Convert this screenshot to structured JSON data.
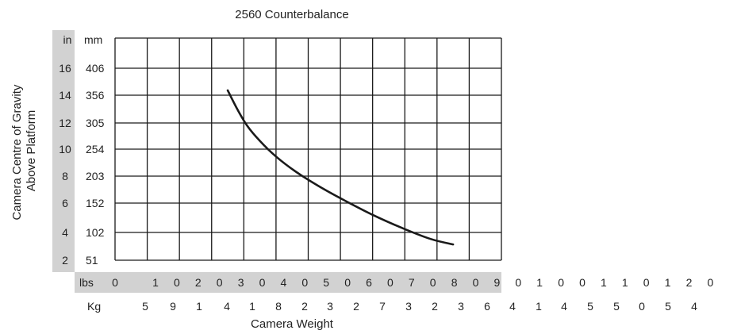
{
  "chart_data": {
    "type": "line",
    "title": "2560 Counterbalance",
    "xlabel": "Camera Weight",
    "ylabel_lines": [
      "Camera Centre of Gravity",
      "Above Platform"
    ],
    "y_axis": {
      "inch_unit": "in",
      "mm_unit": "mm",
      "inch_ticks": [
        "16",
        "14",
        "12",
        "10",
        "8",
        "6",
        "4",
        "2"
      ],
      "mm_ticks": [
        "406",
        "356",
        "305",
        "254",
        "203",
        "152",
        "102",
        "51"
      ]
    },
    "x_axis": {
      "lbs_unit": "lbs",
      "kg_unit": "Kg",
      "lbs_chars": [
        "0",
        "1",
        "0",
        "2",
        "0",
        "3",
        "0",
        "4",
        "0",
        "5",
        "0",
        "6",
        "0",
        "7",
        "0",
        "8",
        "0",
        "9",
        "0",
        "1",
        "0",
        "0",
        "1",
        "1",
        "0",
        "1",
        "2",
        "0"
      ],
      "kg_chars": [
        "5",
        "9",
        "1",
        "4",
        "1",
        "8",
        "2",
        "3",
        "2",
        "7",
        "3",
        "2",
        "3",
        "6",
        "4",
        "1",
        "4",
        "5",
        "5",
        "0",
        "5",
        "4"
      ],
      "lbs_grid_range": [
        0,
        120
      ],
      "lbs_step": 10
    },
    "grid": true,
    "series": [
      {
        "x_lbs": [
          35,
          38,
          41,
          45,
          50,
          56,
          63,
          71,
          80,
          89,
          98,
          105
        ],
        "y_mm": [
          365,
          330,
          300,
          270,
          240,
          212,
          185,
          158,
          132,
          110,
          90,
          80
        ]
      }
    ]
  }
}
